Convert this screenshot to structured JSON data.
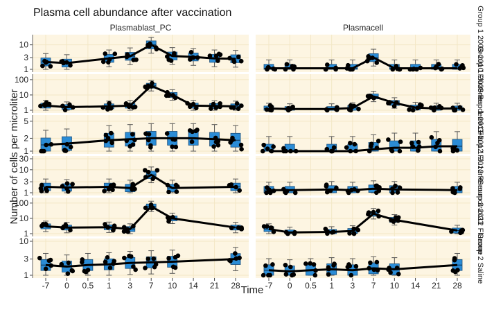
{
  "chart_data": {
    "type": "box",
    "title": "Plasma cell abundance after vaccination",
    "xlabel": "Time",
    "ylabel": "Number of cells per microliter",
    "y_scale": "log",
    "x_ticks": [
      "-7",
      "0",
      "0.5",
      "1",
      "3",
      "7",
      "10",
      "14",
      "21",
      "28"
    ],
    "columns": [
      "Plasmablast_PC",
      "Plasmacell"
    ],
    "rows": [
      {
        "strip": "Group 1 2008-2010 Fluzone",
        "y_ticks": [
          1,
          3,
          10
        ],
        "ylim": [
          1,
          20
        ],
        "panels": [
          {
            "column": "Plasmablast_PC",
            "medians": [
              {
                "x": "-7",
                "y": 2
              },
              {
                "x": "0",
                "y": 1.8
              },
              {
                "x": "1",
                "y": 2.8
              },
              {
                "x": "3",
                "y": 3.4
              },
              {
                "x": "7",
                "y": 10
              },
              {
                "x": "10",
                "y": 3.5
              },
              {
                "x": "14",
                "y": 3.2
              },
              {
                "x": "21",
                "y": 2.8
              },
              {
                "x": "28",
                "y": 2.7
              }
            ]
          },
          {
            "column": "Plasmacell",
            "medians": [
              {
                "x": "-7",
                "y": 1.1
              },
              {
                "x": "0",
                "y": 1.1
              },
              {
                "x": "1",
                "y": 1.1
              },
              {
                "x": "3",
                "y": 1.1
              },
              {
                "x": "7",
                "y": 3
              },
              {
                "x": "10",
                "y": 1.1
              },
              {
                "x": "14",
                "y": 1.1
              },
              {
                "x": "21",
                "y": 1.1
              },
              {
                "x": "28",
                "y": 1.1
              }
            ]
          }
        ]
      },
      {
        "strip": "Group 1 2009 Pandemic Flu",
        "y_ticks": [
          1,
          10,
          100
        ],
        "ylim": [
          1,
          150
        ],
        "panels": [
          {
            "column": "Plasmablast_PC",
            "medians": [
              {
                "x": "-7",
                "y": 2
              },
              {
                "x": "0",
                "y": 1.6
              },
              {
                "x": "1",
                "y": 1.8
              },
              {
                "x": "3",
                "y": 2
              },
              {
                "x": "7",
                "y": 40
              },
              {
                "x": "10",
                "y": 10
              },
              {
                "x": "14",
                "y": 2
              },
              {
                "x": "21",
                "y": 1.9
              },
              {
                "x": "28",
                "y": 1.8
              }
            ]
          },
          {
            "column": "Plasmacell",
            "medians": [
              {
                "x": "-7",
                "y": 1.3
              },
              {
                "x": "0",
                "y": 1.2
              },
              {
                "x": "1",
                "y": 1.2
              },
              {
                "x": "3",
                "y": 1.4
              },
              {
                "x": "7",
                "y": 8
              },
              {
                "x": "10",
                "y": 3
              },
              {
                "x": "14",
                "y": 1.5
              },
              {
                "x": "21",
                "y": 1.3
              },
              {
                "x": "28",
                "y": 1.3
              }
            ]
          }
        ]
      },
      {
        "strip": "Group 1 2011-2012 Fluzone",
        "y_ticks": [
          1,
          2,
          5
        ],
        "ylim": [
          1,
          6
        ],
        "panels": [
          {
            "column": "Plasmablast_PC",
            "medians": [
              {
                "x": "-7",
                "y": 1.4
              },
              {
                "x": "0",
                "y": 1.5
              },
              {
                "x": "1",
                "y": 1.8
              },
              {
                "x": "3",
                "y": 1.9
              },
              {
                "x": "7",
                "y": 2
              },
              {
                "x": "10",
                "y": 2
              },
              {
                "x": "14",
                "y": 2
              },
              {
                "x": "21",
                "y": 1.9
              },
              {
                "x": "28",
                "y": 1.8
              }
            ]
          },
          {
            "column": "Plasmacell",
            "medians": [
              {
                "x": "-7",
                "y": 1
              },
              {
                "x": "0",
                "y": 1
              },
              {
                "x": "1",
                "y": 1
              },
              {
                "x": "3",
                "y": 1
              },
              {
                "x": "7",
                "y": 1.1
              },
              {
                "x": "10",
                "y": 1.2
              },
              {
                "x": "14",
                "y": 1.2
              },
              {
                "x": "21",
                "y": 1.3
              },
              {
                "x": "28",
                "y": 1.3
              }
            ]
          }
        ]
      },
      {
        "strip": "Group 1 2012 Pneumovax23",
        "y_ticks": [
          1,
          3,
          10,
          30
        ],
        "ylim": [
          1,
          30
        ],
        "panels": [
          {
            "column": "Plasmablast_PC",
            "medians": [
              {
                "x": "-7",
                "y": 1.8
              },
              {
                "x": "0",
                "y": 1.7
              },
              {
                "x": "1",
                "y": 1.8
              },
              {
                "x": "3",
                "y": 1.6
              },
              {
                "x": "7",
                "y": 6
              },
              {
                "x": "10",
                "y": 1.6
              },
              {
                "x": "28",
                "y": 1.8
              }
            ]
          },
          {
            "column": "Plasmacell",
            "medians": [
              {
                "x": "-7",
                "y": 1.3
              },
              {
                "x": "0",
                "y": 1.3
              },
              {
                "x": "1",
                "y": 1.4
              },
              {
                "x": "3",
                "y": 1.3
              },
              {
                "x": "7",
                "y": 1.5
              },
              {
                "x": "10",
                "y": 1.4
              },
              {
                "x": "28",
                "y": 1.3
              }
            ]
          }
        ]
      },
      {
        "strip": "Group 2 2012 Fluzone",
        "y_ticks": [
          1,
          10,
          100
        ],
        "ylim": [
          1,
          150
        ],
        "panels": [
          {
            "column": "Plasmablast_PC",
            "medians": [
              {
                "x": "-7",
                "y": 3
              },
              {
                "x": "0",
                "y": 2.5
              },
              {
                "x": "1",
                "y": 2.6
              },
              {
                "x": "3",
                "y": 2
              },
              {
                "x": "7",
                "y": 60
              },
              {
                "x": "10",
                "y": 10
              },
              {
                "x": "28",
                "y": 2.5
              }
            ]
          },
          {
            "column": "Plasmacell",
            "medians": [
              {
                "x": "-7",
                "y": 2
              },
              {
                "x": "0",
                "y": 1.2
              },
              {
                "x": "1",
                "y": 1.3
              },
              {
                "x": "3",
                "y": 1.5
              },
              {
                "x": "7",
                "y": 20
              },
              {
                "x": "10",
                "y": 8
              },
              {
                "x": "28",
                "y": 1.6
              }
            ]
          }
        ]
      },
      {
        "strip": "Group 2 Saline",
        "y_ticks": [
          1,
          3,
          10
        ],
        "ylim": [
          1,
          10
        ],
        "panels": [
          {
            "column": "Plasmablast_PC",
            "medians": [
              {
                "x": "-7",
                "y": 2
              },
              {
                "x": "0",
                "y": 1.8
              },
              {
                "x": "0.5",
                "y": 2
              },
              {
                "x": "1",
                "y": 2.1
              },
              {
                "x": "3",
                "y": 2.3
              },
              {
                "x": "7",
                "y": 2.4
              },
              {
                "x": "10",
                "y": 2.5
              },
              {
                "x": "28",
                "y": 3
              }
            ]
          },
          {
            "column": "Plasmacell",
            "medians": [
              {
                "x": "-7",
                "y": 1.4
              },
              {
                "x": "0",
                "y": 1.3
              },
              {
                "x": "0.5",
                "y": 1.4
              },
              {
                "x": "1",
                "y": 1.5
              },
              {
                "x": "3",
                "y": 1.4
              },
              {
                "x": "7",
                "y": 1.6
              },
              {
                "x": "10",
                "y": 1.5
              },
              {
                "x": "28",
                "y": 2
              }
            ]
          }
        ]
      }
    ]
  },
  "colors": {
    "panel_bg": "#fdf5e2",
    "grid": "#f3e7c6",
    "box_fill": "#2b8cd6",
    "box_stroke": "#1d4f7a",
    "points": "#000000",
    "line": "#000000"
  }
}
